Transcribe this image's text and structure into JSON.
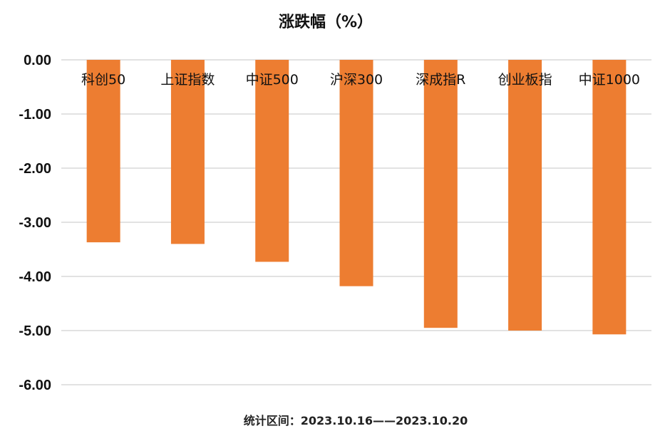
{
  "chart_data": {
    "type": "bar",
    "title": "涨跌幅（%）",
    "footnote": "统计区间：2023.10.16——2023.10.20",
    "categories": [
      "科创50",
      "上证指数",
      "中证500",
      "沪深300",
      "深成指R",
      "创业板指",
      "中证1000"
    ],
    "values": [
      -3.37,
      -3.4,
      -3.73,
      -4.18,
      -4.95,
      -5.0,
      -5.07
    ],
    "ylim": [
      -6,
      0
    ],
    "yticks": [
      "0.00",
      "-1.00",
      "-2.00",
      "-3.00",
      "-4.00",
      "-5.00",
      "-6.00"
    ],
    "xlabel": "",
    "ylabel": "",
    "grid": true,
    "bar_color": "#ED7D31",
    "category_labels_position": "top"
  }
}
